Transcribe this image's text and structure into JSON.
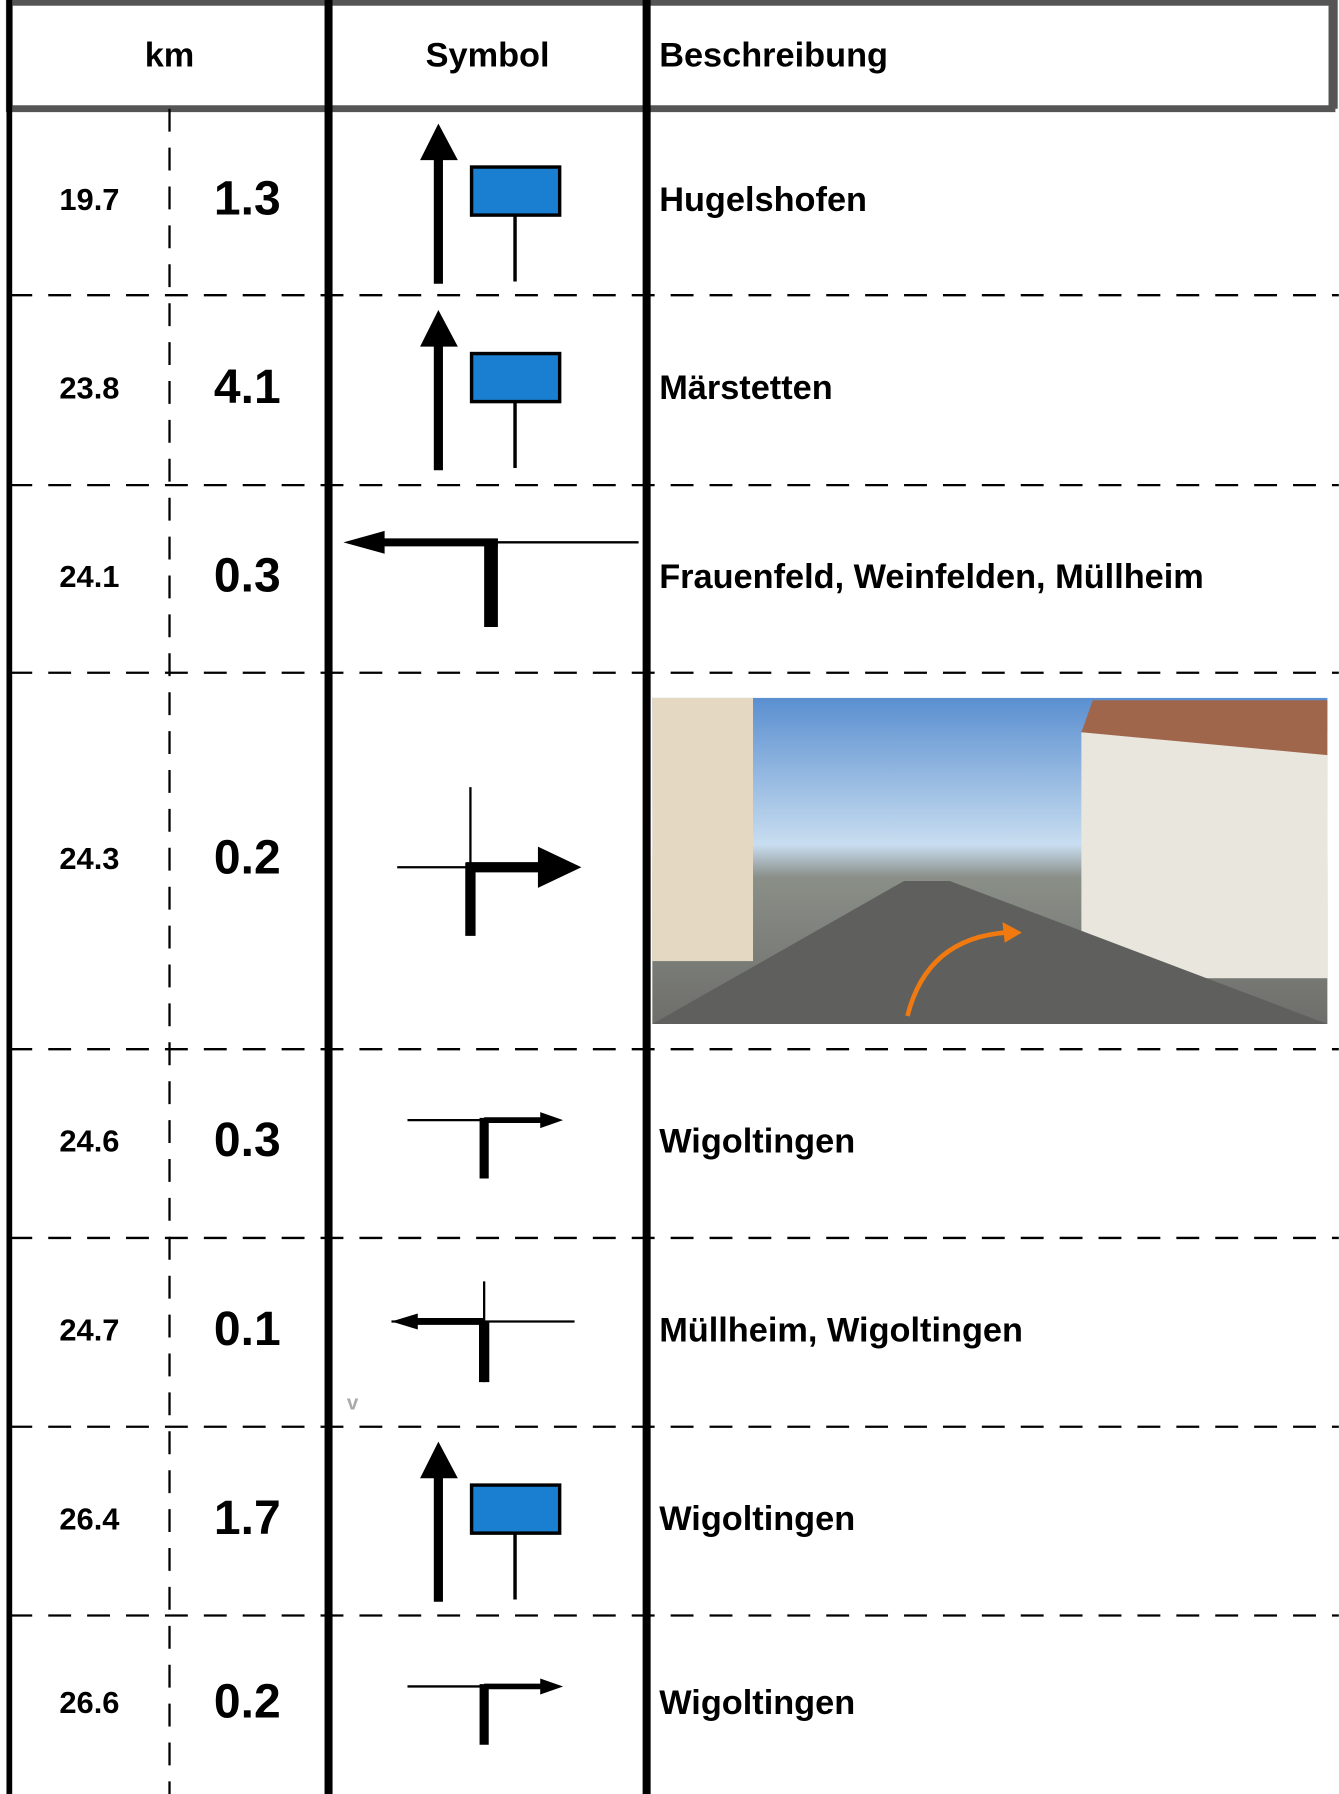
{
  "table": {
    "header": [
      "km",
      "Symbol",
      "Beschreibung"
    ],
    "rows": [
      {
        "km": "19.7",
        "segment": "1.3",
        "description": "Hugelshofen"
      },
      {
        "km": "23.8",
        "segment": "4.1",
        "description": "Märstetten"
      },
      {
        "km": "24.1",
        "segment": "0.3",
        "description": "Frauenfeld, Weinfelden, Müllheim"
      },
      {
        "km": "24.3",
        "segment": "0.2"
      },
      {
        "km": "24.6",
        "segment": "0.3",
        "description": "Wigoltingen"
      },
      {
        "km": "24.7",
        "segment": "0.1",
        "description": "Müllheim, Wigoltingen",
        "note": "v"
      },
      {
        "km": "26.4",
        "segment": "1.7",
        "description": "Wigoltingen"
      },
      {
        "km": "26.6",
        "segment": "0.2",
        "description": "Wigoltingen"
      }
    ]
  }
}
